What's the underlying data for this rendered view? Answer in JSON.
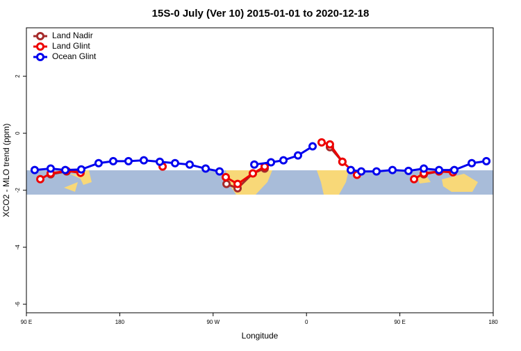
{
  "chart_data": {
    "type": "line",
    "title": "15S-0 July (Ver 10)   2015-01-01 to 2020-12-18",
    "x_label": "Longitude",
    "y_label": "XCO2 - MLO trend (ppm)",
    "xlim": [
      90,
      540
    ],
    "xticks": [
      {
        "value": 90,
        "label": "90 E"
      },
      {
        "value": 180,
        "label": "180"
      },
      {
        "value": 270,
        "label": "90 W"
      },
      {
        "value": 360,
        "label": "0"
      },
      {
        "value": 450,
        "label": "90 E"
      },
      {
        "value": 540,
        "label": "180"
      }
    ],
    "ylim": [
      -6.3,
      3.7
    ],
    "yticks": [
      -6,
      -4,
      -2,
      0,
      2
    ],
    "legend": "top-left",
    "series": [
      {
        "name": "Land Nadir",
        "color": "#a52a2a",
        "x": [
          113.4,
          128.8,
          142.2,
          null,
          282.9,
          293.6,
          308.3,
          319.7,
          null,
          382.6,
          394.6,
          null,
          473.1,
          487.8,
          501.2
        ],
        "values": [
          -1.44,
          -1.34,
          -1.34,
          null,
          -1.78,
          -1.93,
          -1.41,
          -1.24,
          null,
          -0.49,
          -1.0,
          null,
          -1.44,
          -1.34,
          -1.34
        ]
      },
      {
        "name": "Land Glint",
        "color": "#ee0000",
        "x": [
          103.4,
          113.4,
          128.8,
          142.2,
          null,
          221.3,
          null,
          282.2,
          293.6,
          308.3,
          319.7,
          null,
          374.6,
          382.6,
          394.6,
          408.7,
          null,
          463.7,
          473.1,
          487.8,
          501.2
        ],
        "values": [
          -1.61,
          -1.41,
          -1.32,
          -1.39,
          null,
          -1.17,
          null,
          -1.54,
          -1.78,
          -1.41,
          -1.17,
          null,
          -0.32,
          -0.39,
          -1.0,
          -1.46,
          null,
          -1.61,
          -1.41,
          -1.34,
          -1.37
        ]
      },
      {
        "name": "Ocean Glint",
        "color": "#0000ee",
        "x": [
          98,
          113.4,
          127.5,
          142.9,
          159.6,
          173.7,
          188.4,
          203.2,
          218.6,
          233.3,
          247.4,
          262.8,
          276.2,
          null,
          309.7,
          325.8,
          337.8,
          351.8,
          365.9,
          null,
          402.7,
          412.8,
          427.5,
          442.9,
          458.3,
          473.1,
          487.8,
          502.5,
          519.3,
          533.4
        ],
        "values": [
          -1.29,
          -1.24,
          -1.29,
          -1.27,
          -1.05,
          -0.98,
          -0.98,
          -0.95,
          -1.0,
          -1.05,
          -1.1,
          -1.24,
          -1.34,
          null,
          -1.1,
          -1.02,
          -0.95,
          -0.78,
          -0.46,
          null,
          -1.29,
          -1.34,
          -1.34,
          -1.29,
          -1.32,
          -1.24,
          -1.29,
          -1.29,
          -1.05,
          -0.98
        ]
      }
    ]
  }
}
